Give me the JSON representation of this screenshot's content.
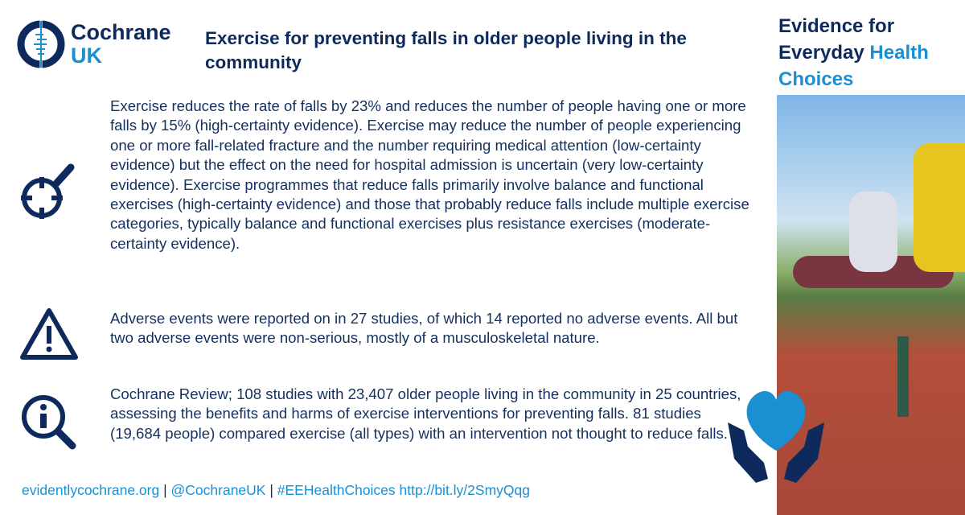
{
  "logo": {
    "name": "Cochrane",
    "region": "UK"
  },
  "title": "Exercise for preventing falls in older people living in the community",
  "tagline": {
    "part1": "Evidence for Everyday ",
    "highlight": "Health Choices"
  },
  "sections": [
    {
      "icon": "target-magnifier-icon",
      "text": "Exercise reduces the rate of falls by 23% and reduces the number of people having one or more falls by 15% (high-certainty evidence). Exercise may reduce the number of people experiencing one or more fall-related fracture and the number requiring medical attention (low-certainty evidence) but the effect on the need for hospital admission is uncertain (very low-certainty evidence). Exercise programmes that reduce falls primarily involve balance and functional exercises (high-certainty evidence) and those that probably reduce falls include multiple exercise categories, typically balance and functional exercises plus resistance exercises (moderate-certainty evidence)."
    },
    {
      "icon": "warning-icon",
      "text": "Adverse events were reported on in 27 studies, of which 14 reported no adverse events. All but two adverse events were non-serious, mostly of a musculoskeletal nature."
    },
    {
      "icon": "info-magnifier-icon",
      "text": "Cochrane Review; 108 studies with 23,407 older people living in the community in 25 countries, assessing the benefits and harms of exercise interventions for preventing falls. 81 studies (19,684 people) compared exercise (all types) with an intervention not thought to reduce falls."
    }
  ],
  "footer": {
    "site": "evidentlycochrane.org",
    "sep": "|",
    "twitter": "@CochraneUK",
    "hashtag": "#EEHealthChoices",
    "link": "http://bit.ly/2SmyQqg"
  },
  "colors": {
    "navy": "#0e2a5c",
    "blue": "#1a8fd1"
  }
}
